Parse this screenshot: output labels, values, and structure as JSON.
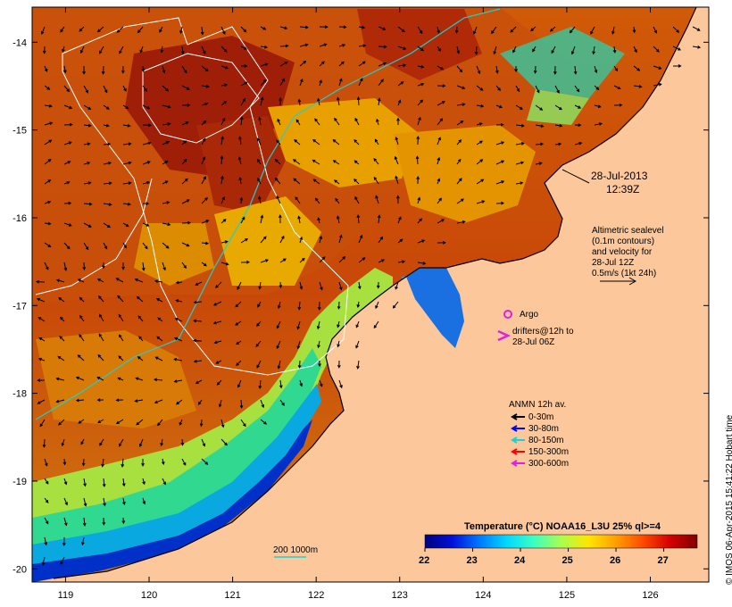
{
  "map": {
    "date": "28-Jul-2013",
    "time": "12:39Z",
    "lon_ticks": [
      "119",
      "120",
      "121",
      "122",
      "123",
      "124",
      "125",
      "126"
    ],
    "lat_ticks": [
      "-14",
      "-15",
      "-16",
      "-17",
      "-18",
      "-19",
      "-20"
    ],
    "lon_range": [
      118.6,
      126.7
    ],
    "lat_range": [
      -20.15,
      -13.6
    ],
    "colors": {
      "land": "#fcc89b",
      "contour_white": "#ffffff",
      "contour_cyan": "#19d2d2"
    }
  },
  "altimetry": {
    "line1": "Altimetric sealevel",
    "line2": "(0.1m contours)",
    "line3": "and velocity for",
    "line4": "28-Jul 12Z",
    "line5": "0.5m/s (1kt 24h)"
  },
  "argo": {
    "label": "Argo",
    "color": "#e020e0"
  },
  "drifters": {
    "line1": "drifters@12h to",
    "line2": "28-Jul 06Z",
    "color": "#e020e0"
  },
  "anmn": {
    "title": "ANMN 12h av.",
    "items": [
      {
        "label": "0-30m",
        "color": "#000000"
      },
      {
        "label": "30-80m",
        "color": "#0000ff"
      },
      {
        "label": "80-150m",
        "color": "#19d2d2"
      },
      {
        "label": "150-300m",
        "color": "#ff0000"
      },
      {
        "label": "300-600m",
        "color": "#e020e0"
      }
    ]
  },
  "depth_legend": {
    "label": "200  1000m"
  },
  "colorbar": {
    "title": "Temperature (°C) NOAA16_L3U 25% ql>=4",
    "ticks": [
      "22",
      "23",
      "24",
      "25",
      "26",
      "27"
    ],
    "range": [
      22,
      27.7
    ],
    "stops": [
      "#00007f",
      "#0010d8",
      "#0078ff",
      "#00d8ff",
      "#3cffc0",
      "#a8ff50",
      "#ffe600",
      "#ffa000",
      "#ff4a00",
      "#d40000",
      "#7f0000"
    ]
  },
  "credit": "© IMOS 06-Apr-2015 15:41:22 Hobart time"
}
